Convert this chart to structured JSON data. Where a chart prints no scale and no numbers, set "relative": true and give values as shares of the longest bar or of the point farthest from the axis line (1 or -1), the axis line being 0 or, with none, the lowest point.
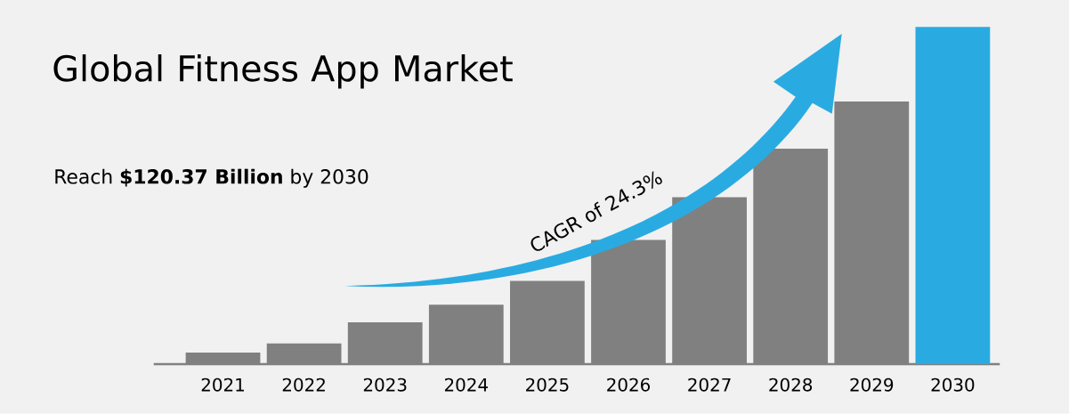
{
  "chart_data": {
    "type": "bar",
    "title": "Global Fitness App Market",
    "subtitle": "Reach **$120.37 Billion** by 2030",
    "categories": [
      "2021",
      "2022",
      "2023",
      "2024",
      "2025",
      "2026",
      "2027",
      "2028",
      "2029",
      "2030"
    ],
    "values": [
      0.034,
      0.061,
      0.124,
      0.176,
      0.247,
      0.368,
      0.495,
      0.639,
      0.779,
      1
    ],
    "colors": [
      "#808080",
      "#808080",
      "#808080",
      "#808080",
      "#808080",
      "#808080",
      "#808080",
      "#808080",
      "#808080",
      "#29abe2"
    ],
    "relative": true,
    "annotations": [
      "CAGR of 24.3%"
    ]
  }
}
